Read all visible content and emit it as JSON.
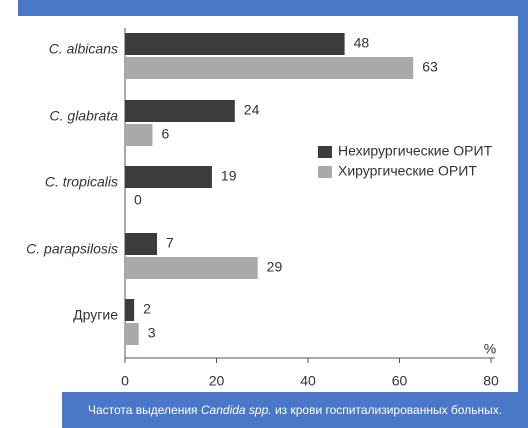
{
  "chart_data": {
    "type": "bar",
    "orientation": "horizontal",
    "categories": [
      "C. albicans",
      "C. glabrata",
      "C. tropicalis",
      "C. parapsilosis",
      "Другие"
    ],
    "series": [
      {
        "name": "Нехирургические ОРИТ",
        "color": "#3c3c3c",
        "values": [
          48,
          24,
          19,
          7,
          2
        ]
      },
      {
        "name": "Хирургические ОРИТ",
        "color": "#a9a9a9",
        "values": [
          63,
          6,
          0,
          29,
          3
        ]
      }
    ],
    "xlim": [
      0,
      80
    ],
    "xticks": [
      0,
      20,
      40,
      60,
      80
    ],
    "xlabel": "%",
    "caption": {
      "before": "Частота выделения",
      "italic": "Candida spp.",
      "after": "из крови госпитализированных больных."
    }
  }
}
